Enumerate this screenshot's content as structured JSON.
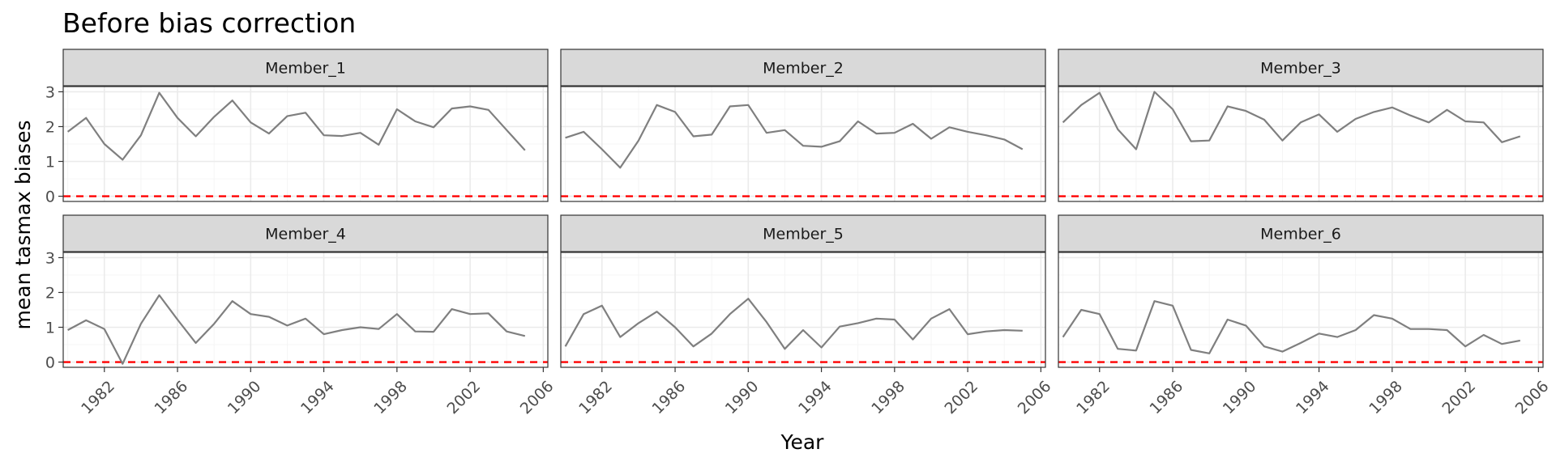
{
  "chart_data": {
    "type": "line",
    "title": "Before bias correction",
    "xlabel": "Year",
    "ylabel": "mean tasmax biases",
    "xlim": [
      1979.75,
      2006.25
    ],
    "ylim": [
      -0.15,
      3.15
    ],
    "x_ticks": [
      1982,
      1986,
      1990,
      1994,
      1998,
      2002,
      2006
    ],
    "y_ticks": [
      0,
      1,
      2,
      3
    ],
    "reference_line": {
      "y": 0,
      "color": "#ff0000",
      "style": "dashed"
    },
    "grid": true,
    "facet_layout": {
      "rows": 2,
      "cols": 3
    },
    "x": [
      1980,
      1981,
      1982,
      1983,
      1984,
      1985,
      1986,
      1987,
      1988,
      1989,
      1990,
      1991,
      1992,
      1993,
      1994,
      1995,
      1996,
      1997,
      1998,
      1999,
      2000,
      2001,
      2002,
      2003,
      2004,
      2005
    ],
    "panels": [
      {
        "label": "Member_1",
        "values": [
          1.85,
          2.25,
          1.5,
          1.05,
          1.75,
          2.97,
          2.25,
          1.72,
          2.28,
          2.75,
          2.12,
          1.8,
          2.3,
          2.4,
          1.75,
          1.73,
          1.82,
          1.48,
          2.5,
          2.15,
          1.98,
          2.52,
          2.58,
          2.48,
          1.9,
          1.32
        ]
      },
      {
        "label": "Member_2",
        "values": [
          1.68,
          1.85,
          1.35,
          0.82,
          1.6,
          2.62,
          2.42,
          1.72,
          1.77,
          2.58,
          2.62,
          1.82,
          1.9,
          1.45,
          1.42,
          1.58,
          2.15,
          1.8,
          1.82,
          2.08,
          1.65,
          1.98,
          1.85,
          1.75,
          1.63,
          1.35
        ]
      },
      {
        "label": "Member_3",
        "values": [
          2.12,
          2.62,
          2.97,
          1.92,
          1.35,
          3.0,
          2.5,
          1.58,
          1.6,
          2.58,
          2.45,
          2.2,
          1.6,
          2.12,
          2.35,
          1.85,
          2.22,
          2.42,
          2.55,
          2.32,
          2.12,
          2.48,
          2.15,
          2.12,
          1.55,
          1.72
        ]
      },
      {
        "label": "Member_4",
        "values": [
          0.92,
          1.2,
          0.95,
          -0.05,
          1.1,
          1.92,
          1.22,
          0.55,
          1.1,
          1.75,
          1.38,
          1.3,
          1.05,
          1.25,
          0.8,
          0.92,
          1.0,
          0.95,
          1.38,
          0.88,
          0.87,
          1.52,
          1.38,
          1.4,
          0.88,
          0.75
        ]
      },
      {
        "label": "Member_5",
        "values": [
          0.45,
          1.38,
          1.62,
          0.72,
          1.12,
          1.45,
          1.0,
          0.45,
          0.82,
          1.38,
          1.82,
          1.15,
          0.38,
          0.92,
          0.42,
          1.02,
          1.12,
          1.25,
          1.22,
          0.65,
          1.25,
          1.52,
          0.8,
          0.88,
          0.92,
          0.9
        ]
      },
      {
        "label": "Member_6",
        "values": [
          0.72,
          1.5,
          1.38,
          0.38,
          0.33,
          1.75,
          1.62,
          0.35,
          0.25,
          1.22,
          1.05,
          0.45,
          0.3,
          0.55,
          0.82,
          0.72,
          0.92,
          1.35,
          1.25,
          0.95,
          0.95,
          0.92,
          0.45,
          0.78,
          0.52,
          0.62
        ]
      }
    ]
  }
}
